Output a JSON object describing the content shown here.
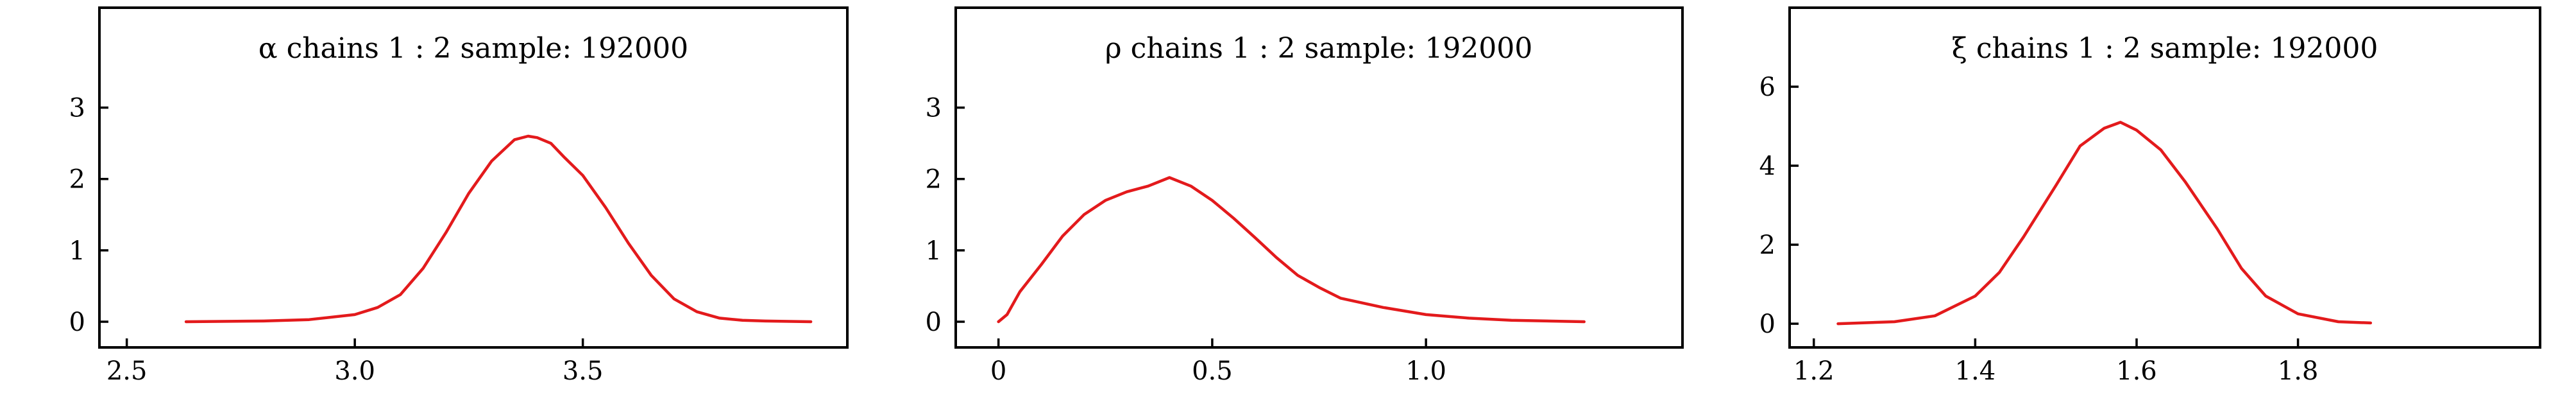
{
  "chart_data": [
    {
      "type": "line",
      "title": "α chains 1 : 2   sample: 192000",
      "xlim": [
        2.44,
        4.08
      ],
      "ylim": [
        -0.36,
        4.4
      ],
      "xticks": [
        "2.5",
        "3.0",
        "3.5"
      ],
      "xtick_values": [
        2.5,
        3.0,
        3.5
      ],
      "yticks": [
        "0",
        "1",
        "2",
        "3"
      ],
      "ytick_values": [
        0,
        1,
        2,
        3
      ],
      "series": [
        {
          "color": "#e31a1c",
          "x": [
            2.63,
            2.8,
            2.9,
            3.0,
            3.05,
            3.1,
            3.15,
            3.2,
            3.25,
            3.3,
            3.35,
            3.38,
            3.4,
            3.43,
            3.46,
            3.5,
            3.55,
            3.6,
            3.65,
            3.7,
            3.75,
            3.8,
            3.85,
            3.9,
            4.0
          ],
          "y": [
            0.0,
            0.01,
            0.03,
            0.1,
            0.2,
            0.38,
            0.75,
            1.25,
            1.8,
            2.25,
            2.55,
            2.6,
            2.58,
            2.5,
            2.3,
            2.05,
            1.6,
            1.1,
            0.65,
            0.32,
            0.14,
            0.05,
            0.02,
            0.01,
            0.0
          ]
        }
      ]
    },
    {
      "type": "line",
      "title": "ρ chains 1 : 2   sample: 192000",
      "xlim": [
        -0.1,
        1.6
      ],
      "ylim": [
        -0.36,
        4.4
      ],
      "xticks": [
        "0",
        "0.5",
        "1.0"
      ],
      "xtick_values": [
        0,
        0.5,
        1.0
      ],
      "yticks": [
        "0",
        "1",
        "2",
        "3"
      ],
      "ytick_values": [
        0,
        1,
        2,
        3
      ],
      "series": [
        {
          "color": "#e31a1c",
          "x": [
            0.0,
            0.02,
            0.05,
            0.1,
            0.15,
            0.2,
            0.25,
            0.3,
            0.35,
            0.4,
            0.45,
            0.5,
            0.55,
            0.6,
            0.65,
            0.7,
            0.75,
            0.8,
            0.9,
            1.0,
            1.1,
            1.2,
            1.37
          ],
          "y": [
            0.0,
            0.1,
            0.42,
            0.8,
            1.2,
            1.5,
            1.7,
            1.82,
            1.9,
            2.02,
            1.9,
            1.7,
            1.45,
            1.18,
            0.9,
            0.65,
            0.48,
            0.33,
            0.2,
            0.1,
            0.05,
            0.02,
            0.0
          ]
        }
      ]
    },
    {
      "type": "line",
      "title": "ξ chains 1 : 2   sample: 192000",
      "xlim": [
        1.17,
        2.1
      ],
      "ylim": [
        -0.6,
        8.0
      ],
      "xticks": [
        "1.2",
        "1.4",
        "1.6",
        "1.8"
      ],
      "xtick_values": [
        1.2,
        1.4,
        1.6,
        1.8
      ],
      "yticks": [
        "0",
        "2",
        "4",
        "6"
      ],
      "ytick_values": [
        0,
        2,
        4,
        6
      ],
      "series": [
        {
          "color": "#e31a1c",
          "x": [
            1.23,
            1.3,
            1.35,
            1.4,
            1.43,
            1.46,
            1.5,
            1.53,
            1.56,
            1.58,
            1.6,
            1.63,
            1.66,
            1.7,
            1.73,
            1.76,
            1.8,
            1.85,
            1.89
          ],
          "y": [
            0.0,
            0.05,
            0.2,
            0.7,
            1.3,
            2.2,
            3.5,
            4.5,
            4.95,
            5.1,
            4.9,
            4.4,
            3.6,
            2.4,
            1.4,
            0.7,
            0.25,
            0.05,
            0.02
          ]
        }
      ]
    }
  ]
}
